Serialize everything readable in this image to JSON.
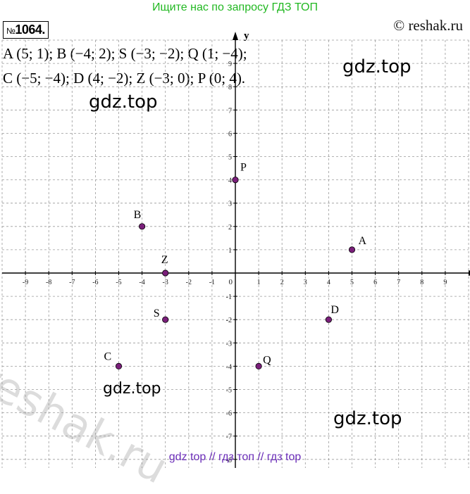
{
  "header": {
    "banner": "Ищите нас по запросу ГДЗ ТОП",
    "problem_number_prefix": "№",
    "problem_number": "1064.",
    "copyright": "© reshak.ru"
  },
  "points_text": {
    "line1": "A (5; 1);  B (−4; 2);  S (−3;  −2);  Q (1;  −4);",
    "line2": "C (−5;  −4);  D (4;  −2);  Z (−3; 0);  P (0; 4)."
  },
  "watermarks": [
    "gdz.top",
    "gdz.top",
    "gdz.top",
    "gdz.top"
  ],
  "reshak_watermark": "reshak.ru",
  "footer": "gdz top  //  гдз топ  //  гдз top",
  "chart_data": {
    "type": "scatter",
    "title": "",
    "xlabel": "x",
    "ylabel": "y",
    "xlim": [
      -10,
      10
    ],
    "ylim": [
      -10,
      10
    ],
    "grid": true,
    "x_ticks": [
      -9,
      -8,
      -7,
      -6,
      -5,
      -4,
      -3,
      -2,
      -1,
      1,
      2,
      3,
      4,
      5,
      6,
      7,
      8,
      9
    ],
    "y_ticks": [
      -9,
      -8,
      -7,
      -6,
      -5,
      -4,
      -3,
      -2,
      -1,
      1,
      2,
      3,
      4,
      5,
      6,
      7,
      8,
      9
    ],
    "origin_label": "0",
    "point_color": "#7a1f7a",
    "points": [
      {
        "label": "A",
        "x": 5,
        "y": 1
      },
      {
        "label": "B",
        "x": -4,
        "y": 2
      },
      {
        "label": "S",
        "x": -3,
        "y": -2
      },
      {
        "label": "Q",
        "x": 1,
        "y": -4
      },
      {
        "label": "C",
        "x": -5,
        "y": -4
      },
      {
        "label": "D",
        "x": 4,
        "y": -2
      },
      {
        "label": "Z",
        "x": -3,
        "y": 0
      },
      {
        "label": "P",
        "x": 0,
        "y": 4
      }
    ]
  }
}
